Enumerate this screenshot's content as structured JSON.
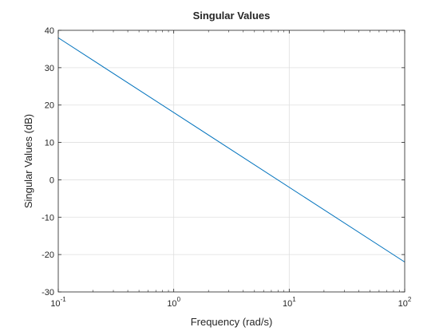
{
  "chart_data": {
    "type": "line",
    "title": "Singular Values",
    "xlabel": "Frequency (rad/s)",
    "ylabel": "Singular Values (dB)",
    "xscale": "log",
    "xlim": [
      0.1,
      100
    ],
    "ylim": [
      -30,
      40
    ],
    "grid": true,
    "x_ticks": [
      {
        "value": 0.1,
        "base": "10",
        "exp": "-1"
      },
      {
        "value": 1,
        "base": "10",
        "exp": "0"
      },
      {
        "value": 10,
        "base": "10",
        "exp": "1"
      },
      {
        "value": 100,
        "base": "10",
        "exp": "2"
      }
    ],
    "y_ticks": [
      -30,
      -20,
      -10,
      0,
      10,
      20,
      30,
      40
    ],
    "series": [
      {
        "color": "#0072BD",
        "x": [
          0.1,
          100
        ],
        "y": [
          38,
          -22
        ]
      }
    ]
  }
}
